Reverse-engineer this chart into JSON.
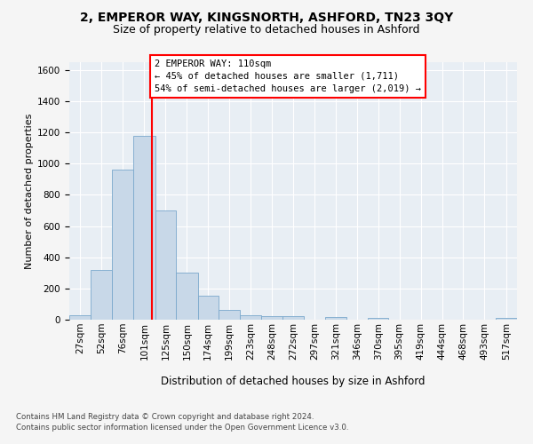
{
  "title1": "2, EMPEROR WAY, KINGSNORTH, ASHFORD, TN23 3QY",
  "title2": "Size of property relative to detached houses in Ashford",
  "xlabel": "Distribution of detached houses by size in Ashford",
  "ylabel": "Number of detached properties",
  "footer1": "Contains HM Land Registry data © Crown copyright and database right 2024.",
  "footer2": "Contains public sector information licensed under the Open Government Licence v3.0.",
  "annotation_title": "2 EMPEROR WAY: 110sqm",
  "annotation_line1": "← 45% of detached houses are smaller (1,711)",
  "annotation_line2": "54% of semi-detached houses are larger (2,019) →",
  "bar_color": "#c8d8e8",
  "bar_edge_color": "#7aa8cc",
  "red_line_x": 110,
  "categories": [
    "27sqm",
    "52sqm",
    "76sqm",
    "101sqm",
    "125sqm",
    "150sqm",
    "174sqm",
    "199sqm",
    "223sqm",
    "248sqm",
    "272sqm",
    "297sqm",
    "321sqm",
    "346sqm",
    "370sqm",
    "395sqm",
    "419sqm",
    "444sqm",
    "468sqm",
    "493sqm",
    "517sqm"
  ],
  "bin_edges": [
    14.5,
    39.5,
    63.5,
    88.5,
    113.5,
    137.5,
    162.5,
    186.5,
    211.5,
    235.5,
    260.5,
    284.5,
    309.5,
    333.5,
    358.5,
    382.5,
    407.5,
    431.5,
    456.5,
    480.5,
    505.5,
    530.5
  ],
  "values": [
    30,
    320,
    960,
    1180,
    700,
    300,
    155,
    65,
    30,
    20,
    20,
    0,
    15,
    0,
    10,
    0,
    0,
    0,
    0,
    0,
    10
  ],
  "ylim": [
    0,
    1650
  ],
  "yticks": [
    0,
    200,
    400,
    600,
    800,
    1000,
    1200,
    1400,
    1600
  ],
  "background_color": "#e8eef4",
  "grid_color": "#ffffff",
  "fig_facecolor": "#f5f5f5",
  "title1_fontsize": 10,
  "title2_fontsize": 9,
  "xlabel_fontsize": 8.5,
  "ylabel_fontsize": 8,
  "tick_fontsize": 7.5,
  "footer_fontsize": 6.2,
  "annotation_fontsize": 7.5
}
